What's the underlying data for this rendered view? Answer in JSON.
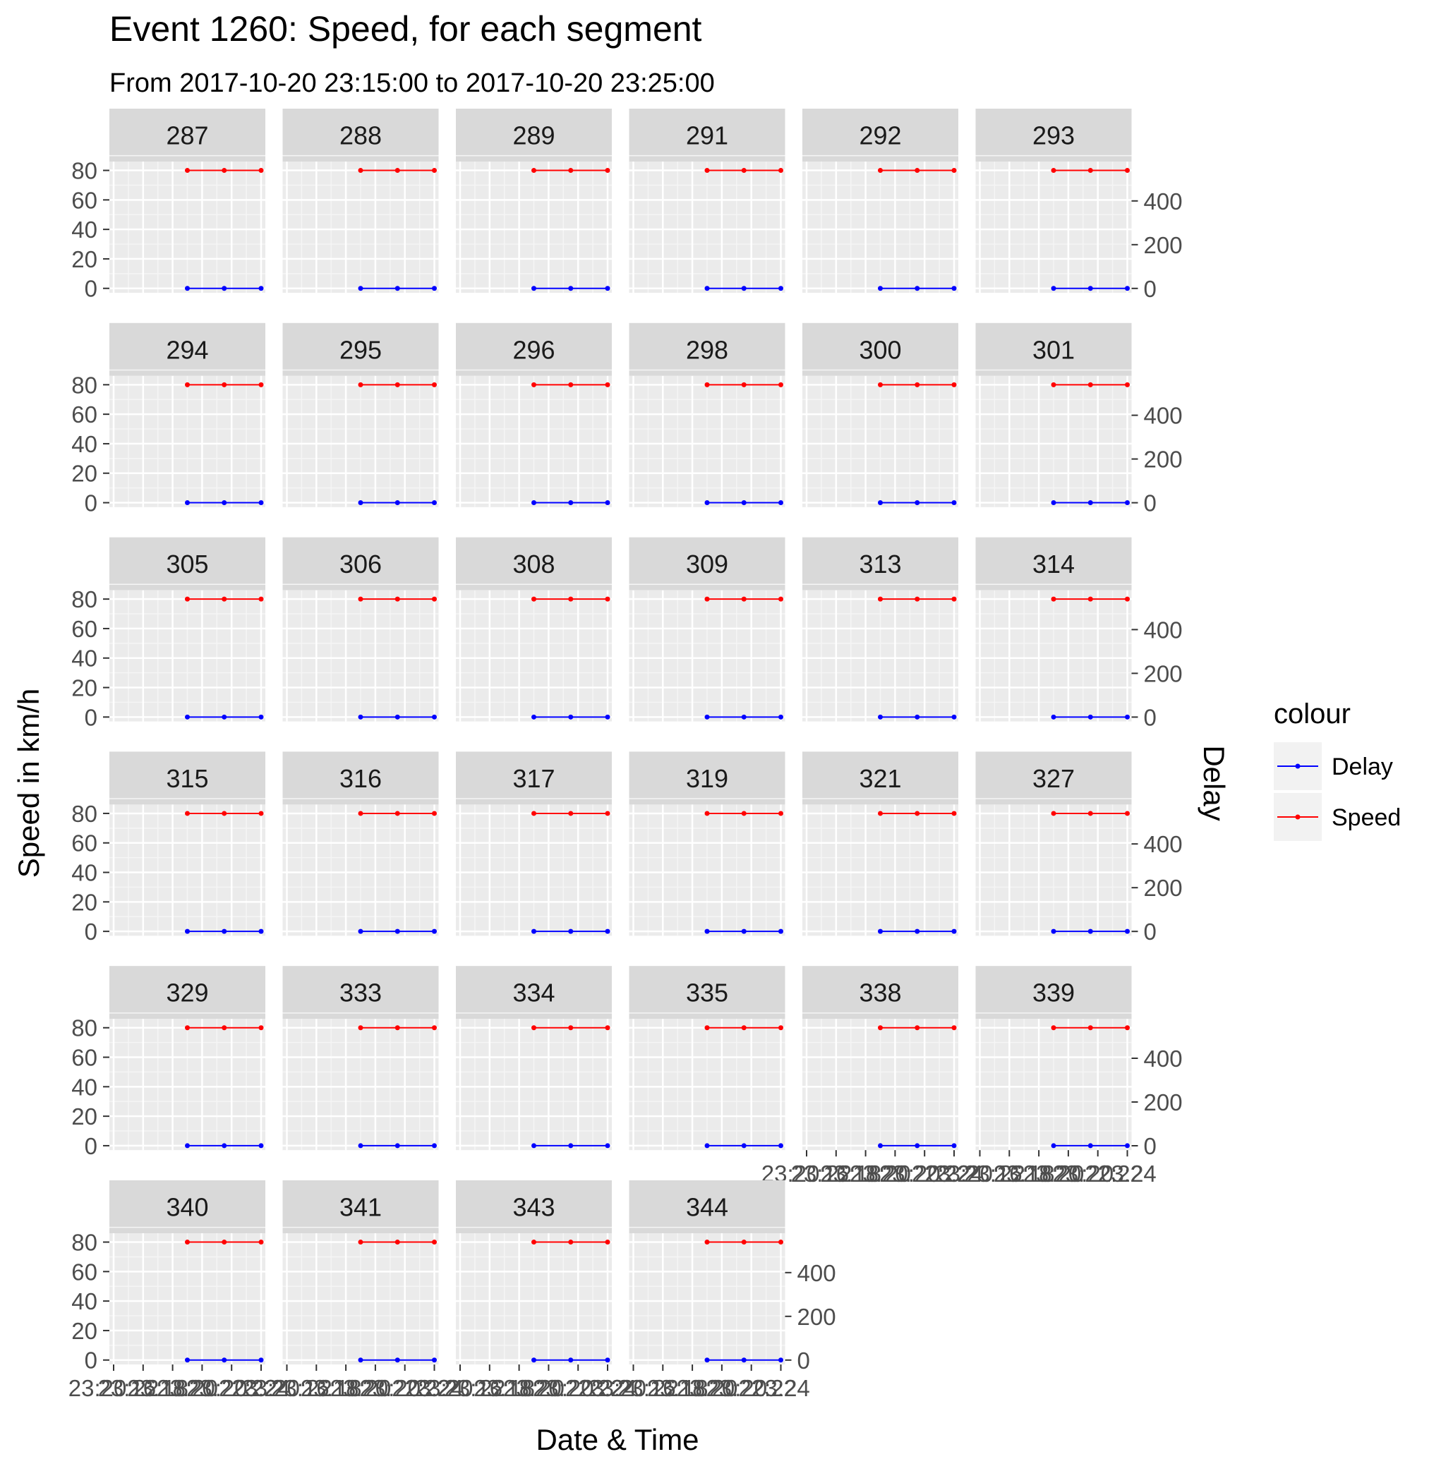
{
  "chart_data": {
    "type": "line",
    "title": "Event 1260: Speed, for each segment",
    "subtitle": "From 2017-10-20 23:15:00 to 2017-10-20 23:25:00",
    "xlabel": "Date & Time",
    "ylabel": "Speed in km/h",
    "y2label": "Delay",
    "x": [
      23.25,
      23.375,
      23.5
    ],
    "x_tick_values": [
      23.0,
      23.1,
      23.2,
      23.3,
      23.4,
      23.5
    ],
    "x_tick_labels": [
      "23:20",
      "23:21",
      "23:22",
      "23:23",
      "23:24",
      "23:24"
    ],
    "x_tick_labels_printed": [
      "23:20:22",
      "23:16:18",
      "23:18:20",
      "23:20:20",
      "23:22:22",
      "23:24"
    ],
    "ylim": [
      -3,
      86
    ],
    "y_ticks": [
      0,
      20,
      40,
      60,
      80
    ],
    "y2lim": [
      -20,
      580
    ],
    "y2_ticks": [
      0,
      200,
      400
    ],
    "grid": true,
    "legend": {
      "title": "colour",
      "position": "right",
      "entries": [
        {
          "name": "Delay",
          "color": "#0000ff"
        },
        {
          "name": "Speed",
          "color": "#ff0000"
        }
      ]
    },
    "series": [
      {
        "name": "Speed",
        "color": "#ff0000",
        "values": [
          80,
          80,
          80
        ]
      },
      {
        "name": "Delay",
        "color": "#0000ff",
        "values": [
          0,
          0,
          0
        ]
      }
    ],
    "panels": [
      "287",
      "288",
      "289",
      "291",
      "292",
      "293",
      "294",
      "295",
      "296",
      "298",
      "300",
      "301",
      "305",
      "306",
      "308",
      "309",
      "313",
      "314",
      "315",
      "316",
      "317",
      "319",
      "321",
      "327",
      "329",
      "333",
      "334",
      "335",
      "338",
      "339",
      "340",
      "341",
      "343",
      "344"
    ]
  },
  "colors": {
    "panel_bg": "#ebebeb",
    "strip_bg": "#d9d9d9",
    "grid_major": "#ffffff",
    "grid_minor": "#f5f5f5",
    "tick_text": "#4d4d4d",
    "tick_line": "#333333"
  }
}
